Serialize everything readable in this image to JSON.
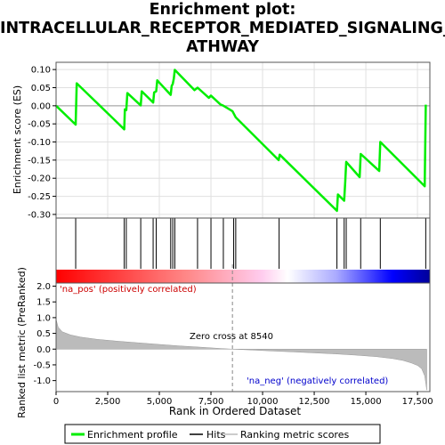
{
  "title_lines": [
    "Enrichment plot:",
    "INTRACELLULAR_RECEPTOR_MEDIATED_SIGNALING_P",
    "ATHWAY"
  ],
  "chart_data": {
    "type": "line",
    "top_panel": {
      "ylabel": "Enrichment score (ES)",
      "ylim": [
        -0.31,
        0.12
      ],
      "yticks": [
        0.1,
        0.05,
        0.0,
        -0.05,
        -0.1,
        -0.15,
        -0.2,
        -0.25,
        -0.3
      ],
      "ytick_labels": [
        "0.10",
        "0.05",
        "0.00",
        "-0.05",
        "-0.10",
        "-0.15",
        "-0.20",
        "-0.25",
        "-0.30"
      ],
      "series": [
        {
          "name": "Enrichment profile",
          "color": "#00ee00",
          "x": [
            0,
            950,
            1000,
            3300,
            3330,
            3400,
            3450,
            4100,
            4150,
            4700,
            4750,
            4850,
            4900,
            5550,
            5600,
            5650,
            5700,
            5750,
            6700,
            6850,
            7400,
            7500,
            7950,
            8100,
            8540,
            8700,
            10780,
            10830,
            13600,
            13650,
            13950,
            14000,
            14050,
            14700,
            14750,
            15650,
            15700,
            17850,
            17900
          ],
          "y": [
            0.0,
            -0.052,
            0.062,
            -0.065,
            -0.01,
            -0.012,
            0.035,
            0.001,
            0.04,
            0.009,
            0.037,
            0.04,
            0.07,
            0.03,
            0.055,
            0.06,
            0.075,
            0.099,
            0.043,
            0.05,
            0.022,
            0.028,
            0.004,
            0.0,
            -0.015,
            -0.032,
            -0.15,
            -0.135,
            -0.29,
            -0.245,
            -0.262,
            -0.21,
            -0.155,
            -0.197,
            -0.133,
            -0.18,
            -0.1,
            -0.222,
            0.003
          ]
        }
      ]
    },
    "hits": [
      950,
      3300,
      3400,
      4100,
      4700,
      4850,
      5550,
      5650,
      5750,
      6850,
      7500,
      8100,
      8600,
      8700,
      10800,
      13600,
      13950,
      14050,
      14750,
      15700,
      17900
    ],
    "hits_color": "#000000",
    "bar_gradient": [
      "#ff0000",
      "#ff8888",
      "#ffccee",
      "#ffffff",
      "#aaaaff",
      "#0000ff",
      "#000099"
    ],
    "bottom_panel": {
      "ylabel": "Ranked list metric (PreRanked)",
      "ylim": [
        -1.35,
        2.1
      ],
      "yticks": [
        2.0,
        1.5,
        1.0,
        0.5,
        0.0,
        -0.5,
        -1.0
      ],
      "ytick_labels": [
        "2.0",
        "1.5",
        "1.0",
        "0.5",
        "0.0",
        "-0.5",
        "-1.0"
      ],
      "fill_color": "#bbbbbb",
      "metric": {
        "x": [
          0,
          100,
          300,
          700,
          1200,
          2000,
          3000,
          4000,
          5000,
          6000,
          7000,
          8000,
          8540,
          9500,
          10500,
          11500,
          12500,
          13500,
          14500,
          15500,
          16300,
          16800,
          17200,
          17500,
          17700,
          17850,
          17950
        ],
        "y": [
          0.95,
          0.7,
          0.55,
          0.45,
          0.38,
          0.31,
          0.25,
          0.2,
          0.15,
          0.1,
          0.06,
          0.02,
          0.0,
          -0.03,
          -0.06,
          -0.09,
          -0.12,
          -0.15,
          -0.19,
          -0.24,
          -0.3,
          -0.36,
          -0.44,
          -0.52,
          -0.62,
          -0.85,
          -1.3
        ]
      },
      "label_pos": "'na_pos' (positively correlated)",
      "label_neg": "'na_neg' (negatively correlated)",
      "zero_cross_label": "Zero cross at 8540",
      "zero_cross_x": 8540
    },
    "xlabel": "Rank in Ordered Dataset",
    "xlim": [
      0,
      18100
    ],
    "xticks": [
      0,
      2500,
      5000,
      7500,
      10000,
      12500,
      15000,
      17500
    ],
    "xtick_labels": [
      "0",
      "2,500",
      "5,000",
      "7,500",
      "10,000",
      "12,500",
      "15,000",
      "17,500"
    ],
    "legend": {
      "placement": "bottom",
      "items": [
        "Enrichment profile",
        "Hits",
        "Ranking metric scores"
      ],
      "colors": [
        "#00ee00",
        "#000000",
        "#bbbbbb"
      ]
    }
  }
}
